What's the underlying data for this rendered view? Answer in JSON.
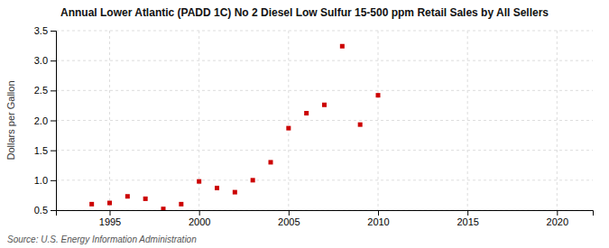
{
  "chart_data": {
    "type": "scatter",
    "title": "Annual Lower Atlantic (PADD 1C) No 2 Diesel Low Sulfur 15-500 ppm Retail Sales by All Sellers",
    "ylabel": "Dollars per Gallon",
    "source": "Source: U.S. Energy Information Administration",
    "x": [
      1994,
      1995,
      1996,
      1997,
      1998,
      1999,
      2000,
      2001,
      2002,
      2003,
      2004,
      2005,
      2006,
      2007,
      2008,
      2009,
      2010
    ],
    "values": [
      0.6,
      0.62,
      0.73,
      0.69,
      0.52,
      0.6,
      0.98,
      0.87,
      0.8,
      1.0,
      1.3,
      1.87,
      2.12,
      2.26,
      3.24,
      1.93,
      2.42
    ],
    "color": "#cc0000",
    "marker": "square",
    "xlim": [
      1992,
      2022
    ],
    "ylim": [
      0.5,
      3.5
    ],
    "xticks": [
      1995,
      2000,
      2005,
      2010,
      2015,
      2020
    ],
    "yticks": [
      0.5,
      {
        "value": 1.0,
        "label": "1.0"
      },
      1.5,
      {
        "value": 2.0,
        "label": "2.0"
      },
      2.5,
      {
        "value": 3.0,
        "label": "3.0"
      },
      3.5
    ],
    "grid": true
  }
}
